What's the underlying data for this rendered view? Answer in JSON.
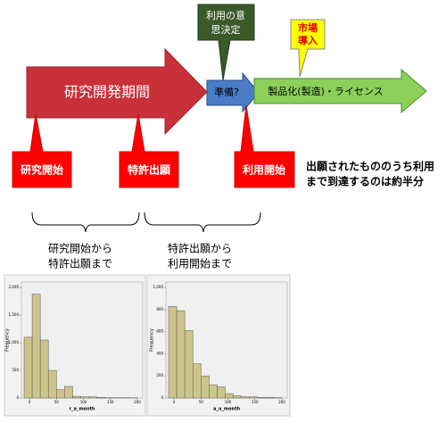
{
  "arrows": {
    "research": "研究開発期間",
    "prep": "準備?",
    "product": "製品化(製造)・ライセンス"
  },
  "callouts": {
    "decision": [
      "利用の意",
      "思決定"
    ],
    "market": [
      "市場",
      "導入"
    ]
  },
  "milestones": [
    "研究開始",
    "特許出願",
    "利用開始"
  ],
  "note": [
    "出願されたもののうち利用",
    "まで到達するのは約半分"
  ],
  "periods": [
    [
      "研究開始から",
      "特許出願まで"
    ],
    [
      "特許出願から",
      "利用開始まで"
    ]
  ],
  "chart_data": [
    {
      "type": "histogram",
      "x_label": "r_a_month",
      "y_label": "Frequency",
      "color": "#cdc48c",
      "bins": [
        -10,
        5,
        20,
        35,
        50,
        65,
        80,
        95,
        110,
        125,
        140,
        155,
        170,
        185,
        200
      ],
      "values": [
        1100,
        1880,
        1050,
        500,
        150,
        210,
        30,
        20,
        20,
        10,
        5,
        5,
        5,
        3
      ],
      "xlim": [
        -15,
        210
      ],
      "ylim": [
        0,
        2100
      ],
      "xticks": [
        0,
        50,
        100,
        150,
        200
      ],
      "yticks": [
        0,
        500,
        {
          "value": 1000,
          "label": "1,000"
        },
        {
          "value": 1500,
          "label": "1,500"
        },
        {
          "value": 2000,
          "label": "2,000"
        }
      ]
    },
    {
      "type": "histogram",
      "x_label": "a_u_month",
      "y_label": "Frequency",
      "color": "#cdc48c",
      "bins": [
        -10,
        5,
        20,
        35,
        50,
        65,
        80,
        95,
        110,
        125,
        140,
        155,
        170,
        185,
        200
      ],
      "values": [
        830,
        790,
        610,
        310,
        200,
        120,
        100,
        40,
        20,
        10,
        10,
        5,
        5,
        3
      ],
      "xlim": [
        -15,
        210
      ],
      "ylim": [
        0,
        1050
      ],
      "xticks": [
        0,
        50,
        100,
        150,
        200
      ],
      "yticks": [
        0,
        200,
        400,
        600,
        800,
        {
          "value": 1000,
          "label": "1,000"
        }
      ]
    }
  ]
}
